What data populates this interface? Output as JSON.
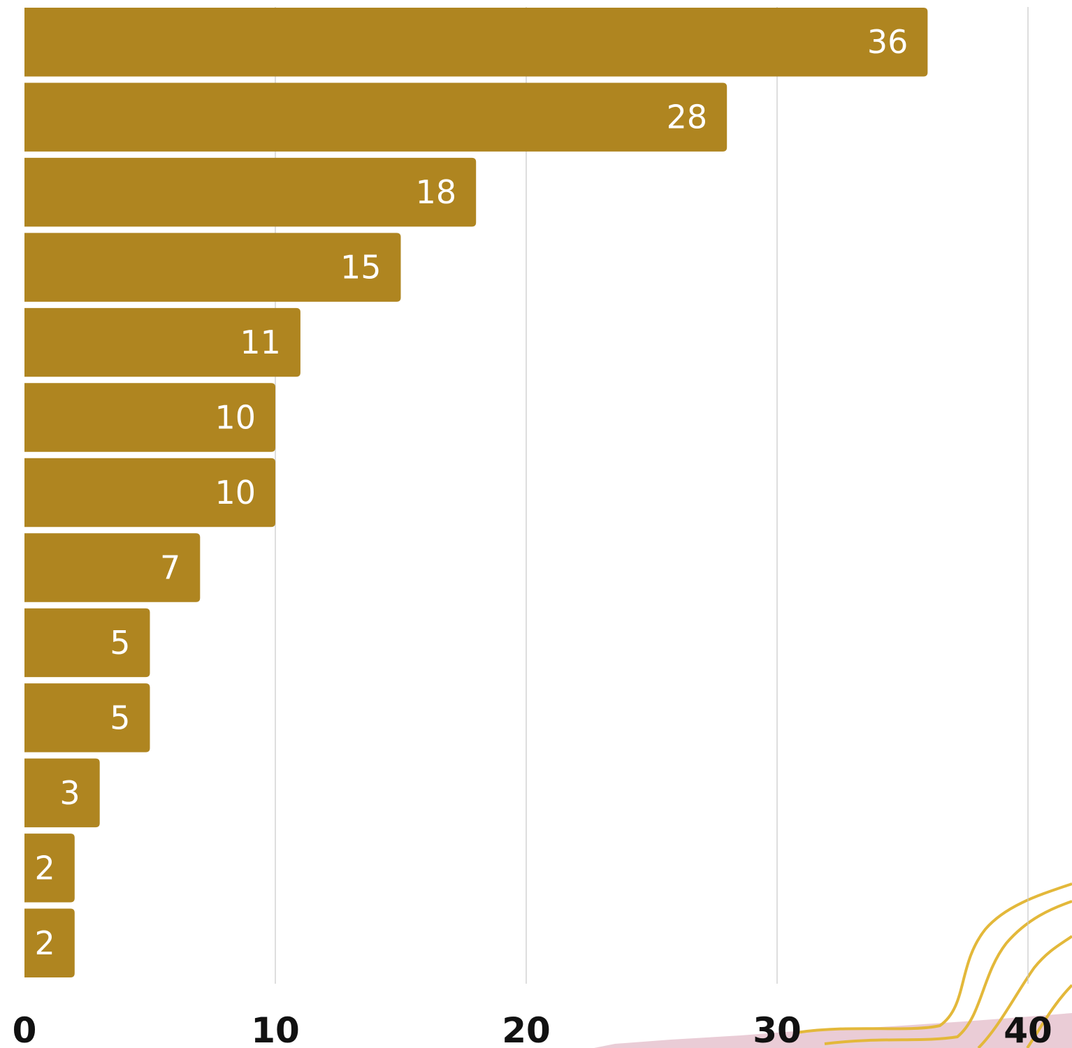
{
  "chart_data": {
    "type": "bar",
    "orientation": "horizontal",
    "title": "",
    "xlabel": "",
    "ylabel": "",
    "values": [
      36,
      28,
      18,
      15,
      11,
      10,
      10,
      7,
      5,
      5,
      3,
      2,
      2
    ],
    "data_labels": [
      "36",
      "28",
      "18",
      "15",
      "11",
      "10",
      "10",
      "7",
      "5",
      "5",
      "3",
      "2",
      "2"
    ],
    "xlim": [
      0,
      40
    ],
    "x_ticks": [
      0,
      10,
      20,
      30,
      40
    ],
    "x_tick_labels": [
      "0",
      "10",
      "20",
      "30",
      "40"
    ],
    "grid": "vertical",
    "legend": "none"
  },
  "colors": {
    "bar": "#AF8520",
    "bar_label": "#ffffff",
    "grid": "#c8c8c8",
    "tick": "#111111",
    "decor_pink": "#c98aa0",
    "decor_gold": "#e3b83a"
  }
}
